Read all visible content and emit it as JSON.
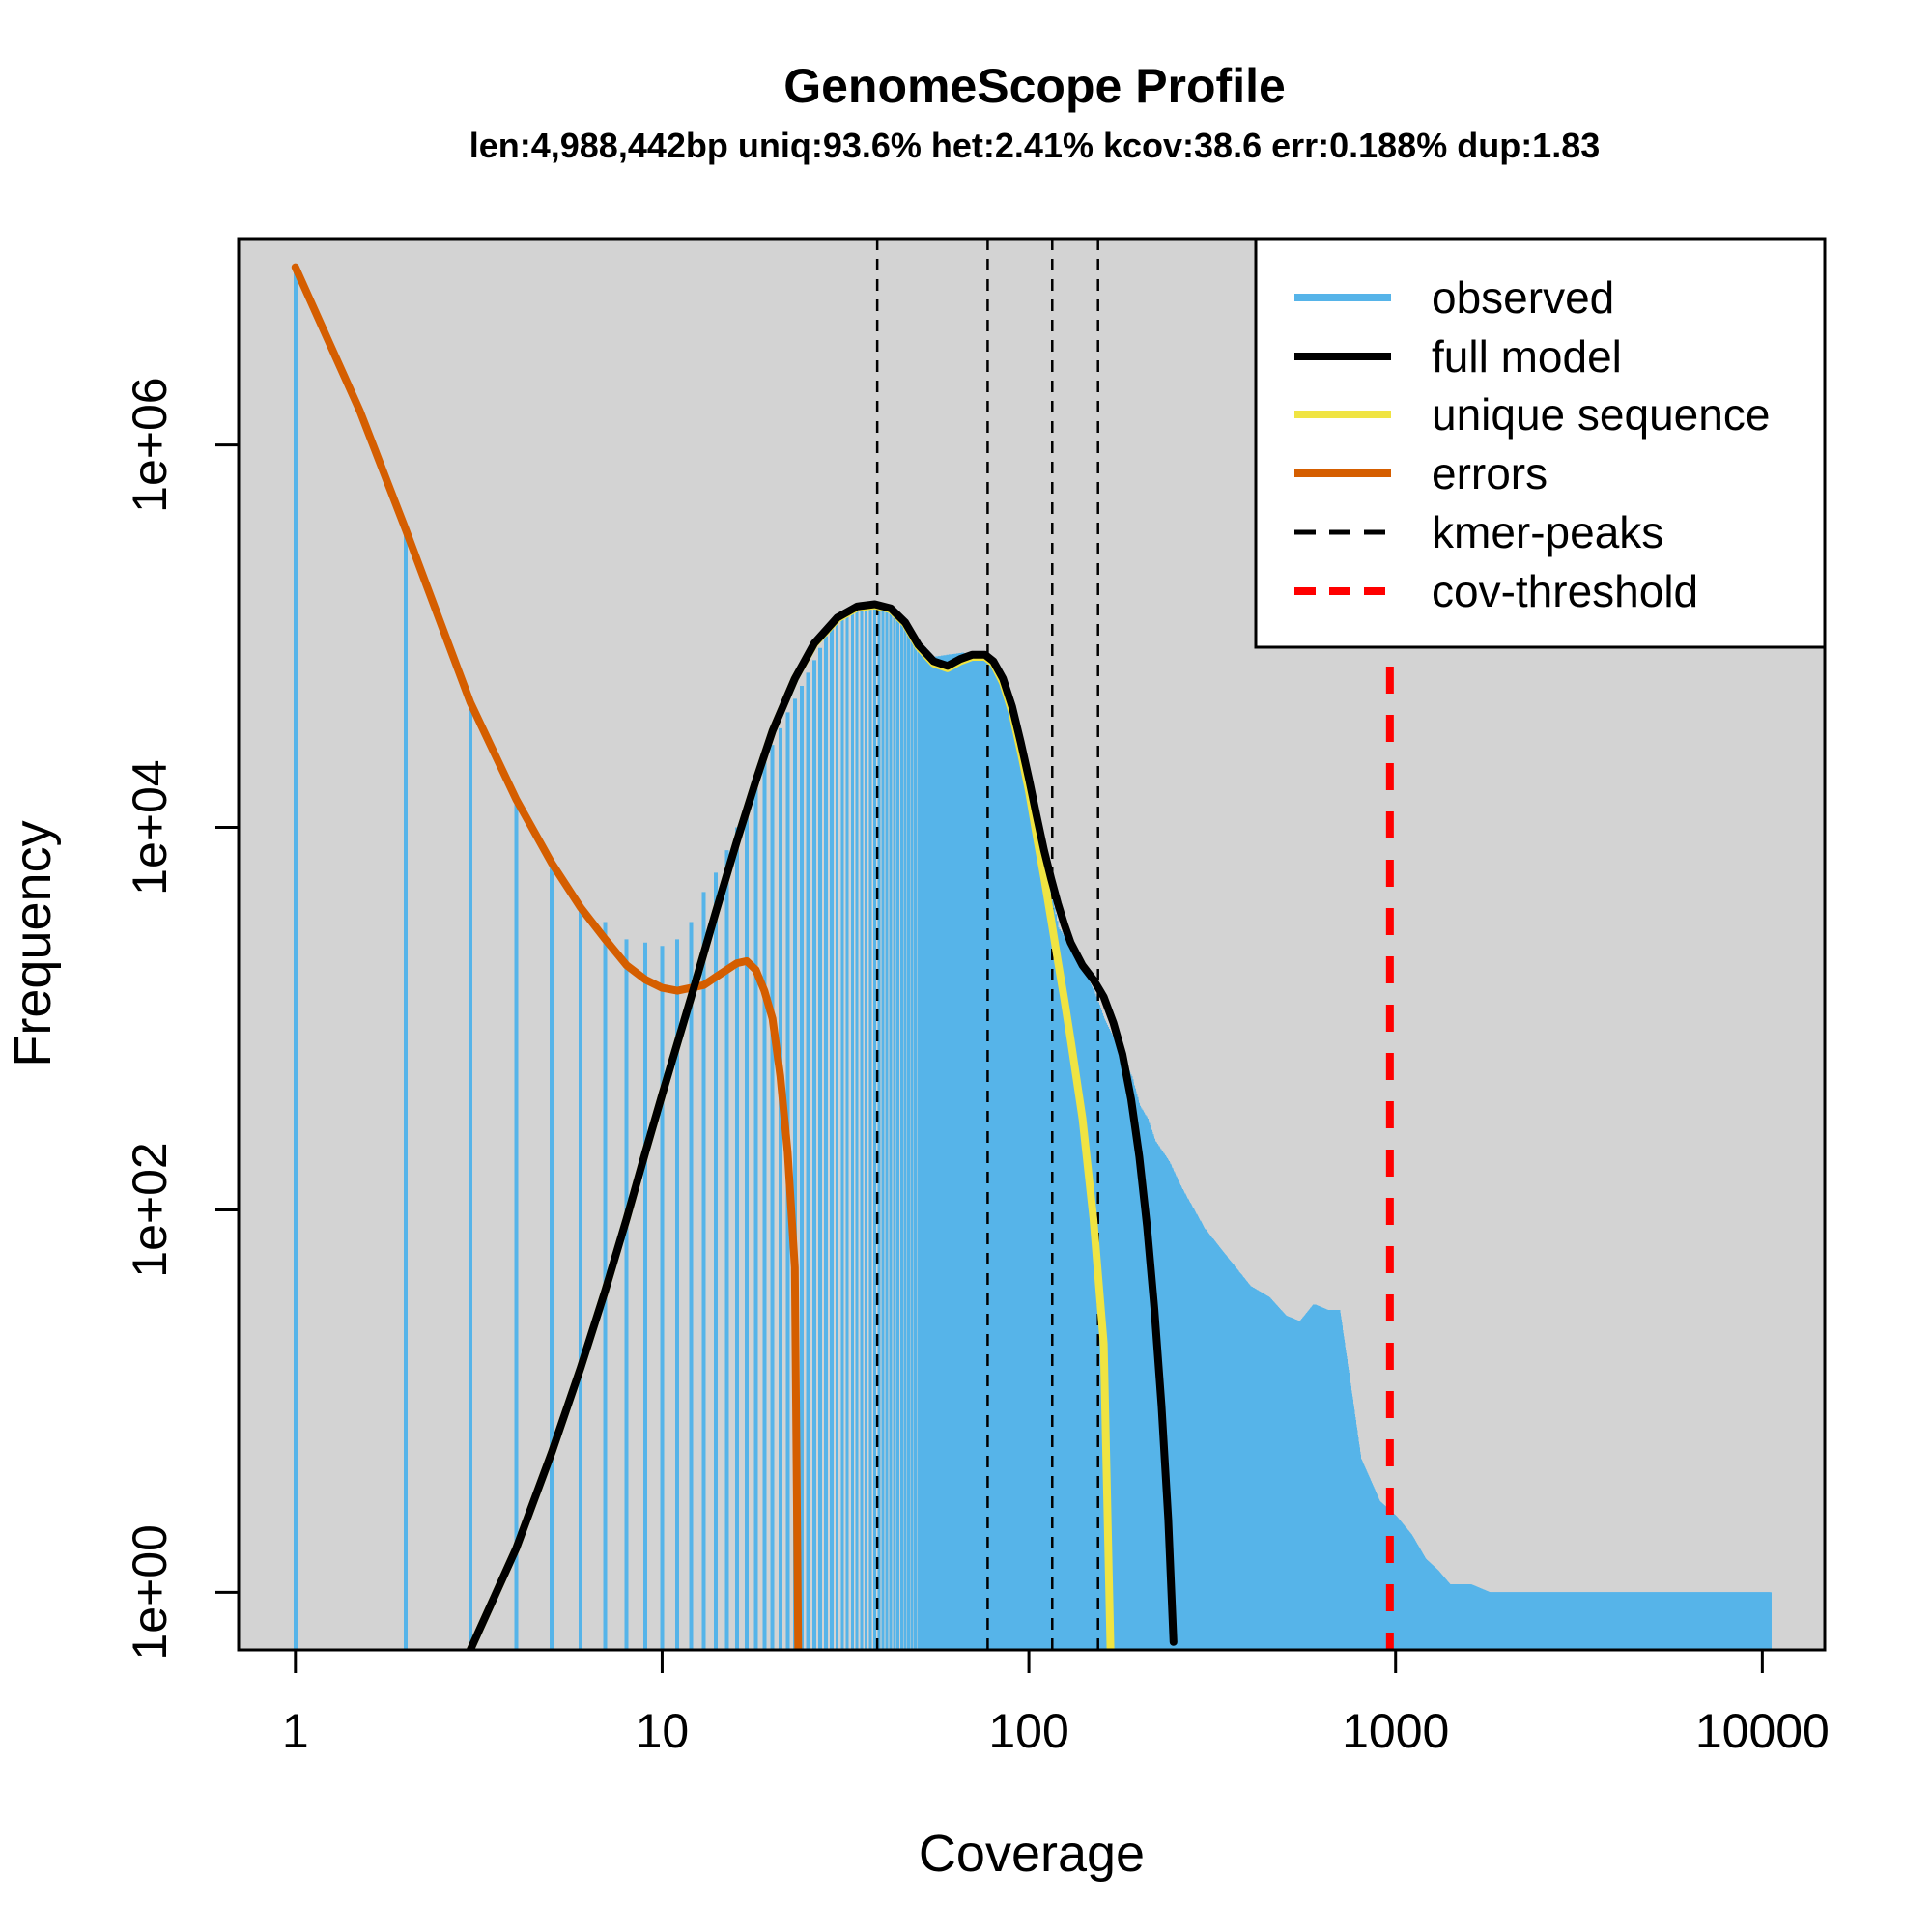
{
  "chart_data": {
    "type": "line",
    "title": "GenomeScope Profile",
    "subtitle": "len:4,988,442bp uniq:93.6% het:2.41% kcov:38.6 err:0.188% dup:1.83",
    "xlabel": "Coverage",
    "ylabel": "Frequency",
    "x_scale": "log",
    "y_scale": "log",
    "xlim": [
      0.7,
      14800
    ],
    "ylim": [
      0.5,
      12000000
    ],
    "x_ticks": [
      1,
      10,
      100,
      1000,
      10000
    ],
    "x_tick_labels": [
      "1",
      "10",
      "100",
      "1000",
      "10000"
    ],
    "y_ticks": [
      1,
      100,
      10000,
      1000000
    ],
    "y_tick_labels": [
      "1e+00",
      "1e+02",
      "1e+04",
      "1e+06"
    ],
    "grid": false,
    "background": "#d3d3d3",
    "legend_position": "top-right",
    "observed": {
      "name": "observed",
      "color": "#56b4e9",
      "x": [
        1,
        2,
        3,
        4,
        5,
        6,
        7,
        8,
        9,
        10,
        11,
        12,
        13,
        14,
        15,
        16,
        17,
        18,
        19,
        20,
        22,
        24,
        26,
        28,
        30,
        33,
        36,
        39,
        42,
        46,
        50,
        55,
        60,
        66,
        72,
        78,
        85,
        92,
        100,
        108,
        115,
        120,
        130,
        140,
        150,
        160,
        175,
        190,
        200,
        210,
        220,
        240,
        260,
        300,
        350,
        400,
        450,
        500,
        550,
        600,
        650,
        700,
        750,
        800,
        900,
        1000,
        1100,
        1200,
        1300,
        1400,
        1600,
        1800,
        2000,
        3000,
        5000,
        7000,
        10500
      ],
      "values": [
        8500000,
        360000,
        45000,
        14000,
        6500,
        3800,
        3200,
        2600,
        2500,
        2400,
        2600,
        3200,
        4600,
        5800,
        7600,
        10000,
        13000,
        17000,
        22000,
        27000,
        40000,
        55000,
        75000,
        100000,
        120000,
        135000,
        145000,
        145000,
        135000,
        115000,
        95000,
        78000,
        80000,
        82000,
        80000,
        72000,
        55000,
        38000,
        20000,
        9000,
        4500,
        3000,
        2400,
        1800,
        1400,
        1000,
        700,
        500,
        350,
        300,
        230,
        180,
        130,
        80,
        55,
        40,
        35,
        28,
        26,
        32,
        30,
        30,
        12,
        5,
        3,
        2.5,
        2,
        1.5,
        1.3,
        1.1,
        1.1,
        1,
        1,
        1,
        1,
        1,
        1
      ]
    },
    "full_model": {
      "name": "full model",
      "color": "#000000",
      "x": [
        3,
        4,
        5,
        6,
        7,
        8,
        9,
        10,
        12,
        14,
        16,
        18,
        20,
        23,
        26,
        30,
        34,
        38,
        42,
        46,
        50,
        55,
        60,
        65,
        70,
        76,
        80,
        85,
        90,
        95,
        100,
        105,
        110,
        115,
        120,
        125,
        130,
        140,
        150,
        160,
        170,
        180,
        190,
        200,
        210,
        220,
        230,
        240,
        248
      ],
      "values": [
        0.5,
        1.7,
        5.4,
        15,
        38,
        90,
        200,
        400,
        1300,
        3600,
        8500,
        17500,
        32000,
        60000,
        92000,
        125000,
        143000,
        147000,
        140000,
        118000,
        90000,
        74000,
        70000,
        76000,
        80000,
        80000,
        74000,
        60000,
        43000,
        28000,
        18000,
        11500,
        7600,
        5400,
        4000,
        3100,
        2500,
        1900,
        1600,
        1300,
        950,
        650,
        380,
        190,
        82,
        30,
        9.5,
        2.4,
        0.55
      ]
    },
    "unique_sequence": {
      "name": "unique sequence",
      "color": "#f0e442",
      "x": [
        3,
        4,
        5,
        6,
        7,
        8,
        9,
        10,
        12,
        14,
        16,
        18,
        20,
        23,
        26,
        30,
        34,
        38,
        42,
        46,
        50,
        55,
        60,
        65,
        70,
        76,
        80,
        85,
        90,
        95,
        100,
        105,
        110,
        115,
        120,
        125,
        130,
        140,
        150,
        160,
        167
      ],
      "values": [
        0.5,
        1.7,
        5.4,
        15,
        38,
        90,
        200,
        400,
        1300,
        3600,
        8500,
        17500,
        32000,
        60000,
        91000,
        123000,
        141000,
        145000,
        138000,
        116000,
        88000,
        72000,
        68000,
        74000,
        78000,
        78000,
        72000,
        57000,
        40000,
        25000,
        15500,
        9000,
        5500,
        3300,
        2000,
        1250,
        780,
        300,
        90,
        20,
        0.5
      ]
    },
    "errors": {
      "name": "errors",
      "color": "#d55e00",
      "x": [
        1,
        1.5,
        2,
        3,
        4,
        5,
        6,
        7,
        8,
        9,
        10,
        11,
        12,
        13,
        14,
        15,
        16,
        17,
        18,
        19,
        20,
        21,
        22,
        23,
        23.5
      ],
      "values": [
        8500000,
        1500000,
        360000,
        45000,
        14000,
        6500,
        3800,
        2600,
        1900,
        1600,
        1450,
        1400,
        1450,
        1500,
        1650,
        1800,
        1950,
        2000,
        1800,
        1400,
        1000,
        500,
        200,
        50,
        0.5
      ]
    },
    "kmer_peaks": {
      "name": "kmer-peaks",
      "color": "#000000",
      "x": [
        38.6,
        77.2,
        115.8,
        154.4
      ]
    },
    "cov_threshold": {
      "name": "cov-threshold",
      "color": "#ff0000",
      "x": 965
    }
  }
}
